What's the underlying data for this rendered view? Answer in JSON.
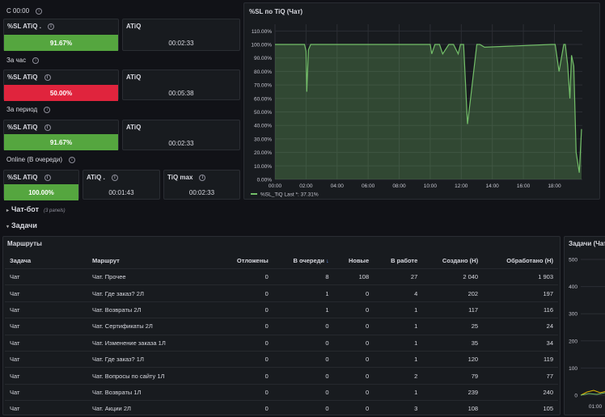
{
  "sections": {
    "s1": "С 00:00",
    "s2": "За час",
    "s3": "За период",
    "s4": "Online (В очереди)"
  },
  "stat_panels": {
    "sl_since_midnight": {
      "title": "%SL ATiQ .",
      "value": "91.67%",
      "color": "#55a63f"
    },
    "atiq_since_midnight": {
      "title": "ATiQ",
      "value": "00:02:33"
    },
    "sl_hour": {
      "title": "%SL ATiQ",
      "value": "50.00%",
      "color": "#e0243d"
    },
    "atiq_hour": {
      "title": "ATiQ",
      "value": "00:05:38"
    },
    "sl_period": {
      "title": "%SL ATiQ",
      "value": "91.67%",
      "color": "#55a63f"
    },
    "atiq_period": {
      "title": "ATiQ",
      "value": "00:02:33"
    },
    "sl_online": {
      "title": "%SL ATiQ",
      "value": "100.00%",
      "color": "#55a63f"
    },
    "atiq_online": {
      "title": "ATiQ .",
      "value": "00:01:43"
    },
    "tiq_max": {
      "title": "TiQ max",
      "value": "00:02:33"
    }
  },
  "chart_panel": {
    "title": "%SL по TiQ (Чат)",
    "legend": "%SL_TiQ  Last *: 37.31%"
  },
  "chart_data": {
    "type": "area",
    "title": "%SL по TiQ (Чат)",
    "x_ticks": [
      "00:00",
      "02:00",
      "04:00",
      "06:00",
      "08:00",
      "10:00",
      "12:00",
      "14:00",
      "16:00",
      "18:00"
    ],
    "y_ticks": [
      "0.00%",
      "10.00%",
      "20.00%",
      "30.00%",
      "40.00%",
      "50.00%",
      "60.00%",
      "70.00%",
      "80.00%",
      "90.00%",
      "100.00%",
      "110.00%"
    ],
    "ylim": [
      0,
      115
    ],
    "xlim": [
      0,
      19.8
    ],
    "series": [
      {
        "name": "%SL_TiQ",
        "color": "#73bf69",
        "x": [
          0,
          1.9,
          2.0,
          2.05,
          2.15,
          2.3,
          10.0,
          10.1,
          10.3,
          10.6,
          10.8,
          11.2,
          11.5,
          11.8,
          11.95,
          12.15,
          12.4,
          12.6,
          13.0,
          13.2,
          13.5,
          17.8,
          18.05,
          18.3,
          18.6,
          18.7,
          18.85,
          19.0,
          19.1,
          19.25,
          19.4,
          19.6,
          19.75
        ],
        "values": [
          100,
          100,
          95,
          65,
          96,
          100,
          100,
          93,
          100,
          100,
          93,
          100,
          100,
          93,
          100,
          100,
          41,
          60,
          100,
          100,
          98,
          100,
          100,
          80,
          100,
          100,
          85,
          60,
          92,
          84,
          20,
          5,
          37.31
        ]
      }
    ],
    "legend": "%SL_TiQ  Last *: 37.31%",
    "legend_position": "bottom-left",
    "grid": true
  },
  "rows": {
    "chatbot": {
      "label": "Чат-бот",
      "sub": "(3 panels)"
    },
    "tasks": {
      "label": "Задачи"
    }
  },
  "routes_panel": {
    "title": "Маршруты",
    "columns": [
      "Задача",
      "Маршрут",
      "Отложены",
      "В очереди",
      "Новые",
      "В работе",
      "Создано (Н)",
      "Обработано (Н)"
    ],
    "rows": [
      [
        "Чат",
        "Чат. Прочее",
        "0",
        "8",
        "108",
        "27",
        "2 040",
        "1 903"
      ],
      [
        "Чат",
        "Чат. Где заказ? 2Л",
        "0",
        "1",
        "0",
        "4",
        "202",
        "197"
      ],
      [
        "Чат",
        "Чат. Возвраты 2Л",
        "0",
        "1",
        "0",
        "1",
        "117",
        "116"
      ],
      [
        "Чат",
        "Чат. Сертификаты 2Л",
        "0",
        "0",
        "0",
        "1",
        "25",
        "24"
      ],
      [
        "Чат",
        "Чат. Изменение заказа 1Л",
        "0",
        "0",
        "0",
        "1",
        "35",
        "34"
      ],
      [
        "Чат",
        "Чат. Где заказ? 1Л",
        "0",
        "0",
        "0",
        "1",
        "120",
        "119"
      ],
      [
        "Чат",
        "Чат. Вопросы по сайту 1Л",
        "0",
        "0",
        "0",
        "2",
        "79",
        "77"
      ],
      [
        "Чат",
        "Чат. Возвраты 1Л",
        "0",
        "0",
        "0",
        "1",
        "239",
        "240"
      ],
      [
        "Чат",
        "Чат. Акции 2Л",
        "0",
        "0",
        "0",
        "3",
        "108",
        "105"
      ]
    ]
  },
  "tasks_panel": {
    "title": "Задачи (Чат",
    "y_ticks": [
      "500",
      "400",
      "300",
      "200",
      "100",
      "0"
    ],
    "x_tick": "01:00"
  }
}
